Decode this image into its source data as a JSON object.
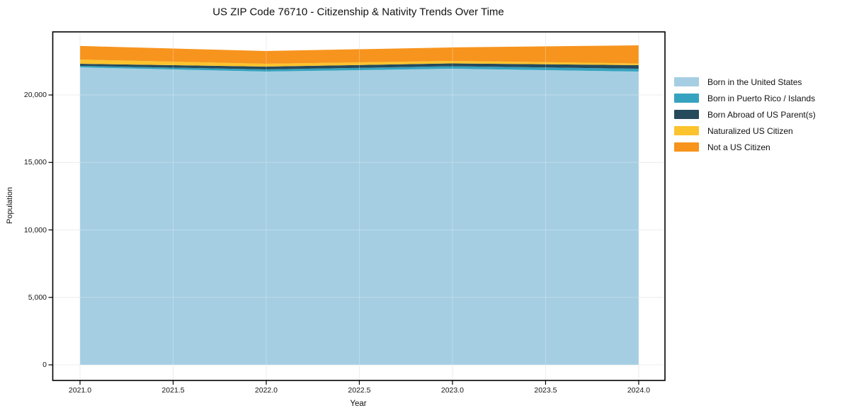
{
  "title": "US ZIP Code 76710 - Citizenship & Nativity Trends Over Time",
  "chart_data": {
    "type": "area",
    "stacked": true,
    "title": "US ZIP Code 76710 - Citizenship & Nativity Trends Over Time",
    "xlabel": "Year",
    "ylabel": "Population",
    "x": [
      2021,
      2022,
      2023,
      2024
    ],
    "series": [
      {
        "name": "Born in the United States",
        "color": "#a5cee3",
        "values": [
          22050,
          21735,
          21945,
          21735
        ]
      },
      {
        "name": "Born in Puerto Rico / Islands",
        "color": "#35a3bf",
        "values": [
          105,
          160,
          185,
          210
        ]
      },
      {
        "name": "Born Abroad of US Parent(s)",
        "color": "#254a5c",
        "values": [
          160,
          210,
          210,
          265
        ]
      },
      {
        "name": "Naturalized US Citizen",
        "color": "#fcc32d",
        "values": [
          315,
          210,
          185,
          130
        ]
      },
      {
        "name": "Not a US Citizen",
        "color": "#f7941e",
        "values": [
          1000,
          945,
          1000,
          1340
        ]
      }
    ],
    "totals": [
      23630,
      23260,
      23525,
      23680
    ],
    "x_ticks": {
      "values": [
        2021.0,
        2021.5,
        2022.0,
        2022.5,
        2023.0,
        2023.5,
        2024.0
      ],
      "labels": [
        "2021.0",
        "2021.5",
        "2022.0",
        "2022.5",
        "2023.0",
        "2023.5",
        "2024.0"
      ]
    },
    "y_ticks": {
      "values": [
        0,
        5000,
        10000,
        15000,
        20000
      ],
      "labels": [
        "0",
        "5,000",
        "10,000",
        "15,000",
        "20,000"
      ]
    },
    "xlim": [
      2020.8536,
      2024.141
    ],
    "ylim": [
      -1155,
      24675
    ],
    "grid": true,
    "legend_position": "right-outside"
  }
}
